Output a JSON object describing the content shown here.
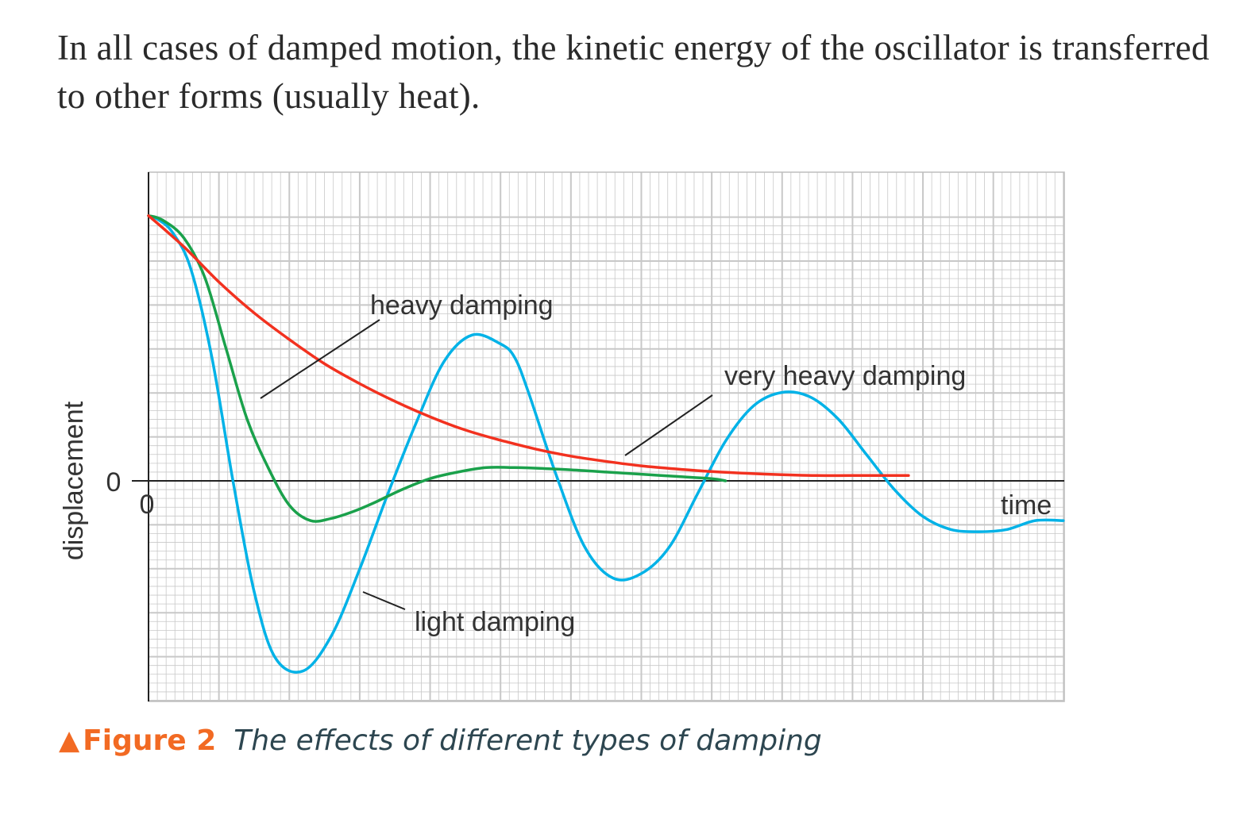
{
  "intro_text": "In all cases of damped motion, the kinetic energy of the oscillator is transferred to other forms (usually heat).",
  "caption": {
    "icon": "triangle-up-icon",
    "label": "Figure 2",
    "text": "The effects of different types of damping"
  },
  "colors": {
    "light": "#00b2e7",
    "heavy": "#1aa14b",
    "very_heavy": "#f2311f",
    "caption_accent": "#f26a23",
    "grid": "#c8c8c8"
  },
  "chart_data": {
    "type": "line",
    "title": "",
    "xlabel": "time",
    "ylabel": "displacement",
    "x_tick_labels": [
      "0"
    ],
    "y_tick_labels": [
      "0"
    ],
    "xlim": [
      0,
      13
    ],
    "ylim": [
      -5,
      6
    ],
    "grid": true,
    "annotations": [
      "heavy damping",
      "very heavy damping",
      "light damping"
    ],
    "series": [
      {
        "name": "light damping",
        "x": [
          0,
          0.15,
          0.35,
          0.6,
          0.9,
          1.2,
          1.5,
          1.8,
          2.2,
          2.6,
          3.0,
          3.4,
          3.8,
          4.2,
          4.6,
          5.0,
          5.2,
          5.4,
          5.8,
          6.2,
          6.6,
          7.0,
          7.4,
          7.8,
          8.2,
          8.6,
          9.0,
          9.4,
          9.8,
          10.2,
          10.6,
          11.0,
          11.4,
          11.8,
          12.2,
          12.6,
          13.0
        ],
        "y": [
          6.0,
          5.9,
          5.6,
          4.8,
          2.8,
          0.0,
          -2.5,
          -4.0,
          -4.3,
          -3.5,
          -2.0,
          -0.3,
          1.3,
          2.7,
          3.3,
          3.1,
          2.8,
          2.0,
          0.1,
          -1.5,
          -2.2,
          -2.1,
          -1.5,
          -0.3,
          0.9,
          1.7,
          2.0,
          1.9,
          1.4,
          0.6,
          -0.2,
          -0.8,
          -1.1,
          -1.15,
          -1.1,
          -0.9,
          -0.9
        ]
      },
      {
        "name": "heavy damping",
        "x": [
          0,
          0.2,
          0.5,
          0.8,
          1.1,
          1.4,
          1.7,
          2.0,
          2.3,
          2.6,
          2.9,
          3.2,
          3.6,
          4.0,
          4.4,
          4.8,
          5.2,
          5.6,
          6.0,
          6.5,
          7.0,
          7.5,
          8.0,
          8.2
        ],
        "y": [
          6.0,
          5.9,
          5.5,
          4.6,
          3.0,
          1.4,
          0.3,
          -0.55,
          -0.9,
          -0.85,
          -0.7,
          -0.5,
          -0.2,
          0.05,
          0.2,
          0.3,
          0.3,
          0.28,
          0.25,
          0.2,
          0.15,
          0.1,
          0.05,
          0.0
        ]
      },
      {
        "name": "very heavy damping",
        "x": [
          0,
          0.5,
          1.0,
          1.5,
          2.0,
          2.5,
          3.0,
          3.5,
          4.0,
          4.5,
          5.0,
          5.5,
          6.0,
          6.5,
          7.0,
          7.5,
          8.0,
          8.5,
          9.0,
          9.5,
          10.0,
          10.8
        ],
        "y": [
          6.0,
          5.3,
          4.5,
          3.8,
          3.2,
          2.65,
          2.2,
          1.8,
          1.45,
          1.15,
          0.92,
          0.72,
          0.56,
          0.44,
          0.34,
          0.27,
          0.21,
          0.17,
          0.14,
          0.12,
          0.12,
          0.12
        ]
      }
    ]
  }
}
